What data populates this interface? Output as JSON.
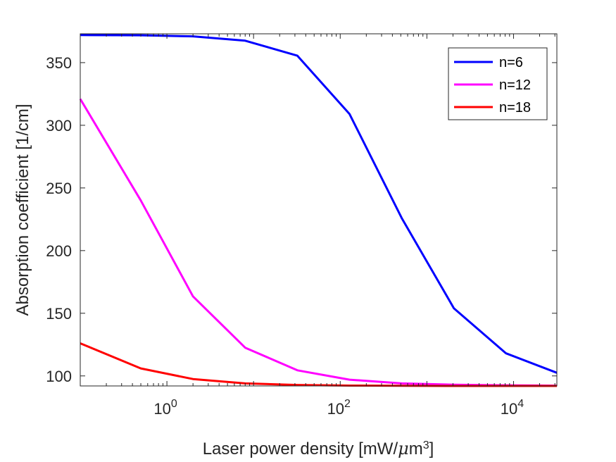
{
  "chart_data": {
    "type": "line",
    "title": "",
    "xlabel": "Laser power density [mW/μm³]",
    "xlabel_parts": {
      "prefix": "Laser power density [mW/",
      "mu": "μ",
      "m": "m",
      "sup": "3",
      "suffix": "]"
    },
    "ylabel": "Absorption coefficient [1/cm]",
    "xscale": "log",
    "xlim": [
      0.1,
      31623
    ],
    "ylim": [
      92,
      373
    ],
    "x_ticks": [
      {
        "value": 1,
        "base": "10",
        "exp": "0"
      },
      {
        "value": 100,
        "base": "10",
        "exp": "2"
      },
      {
        "value": 10000,
        "base": "10",
        "exp": "4"
      }
    ],
    "y_ticks": [
      100,
      150,
      200,
      250,
      300,
      350
    ],
    "grid": false,
    "legend_position": "top-right",
    "series": [
      {
        "name": "n=6",
        "color": "#0000ff",
        "x": [
          0.1,
          0.5,
          2,
          8,
          32,
          128,
          512,
          2048,
          8192,
          31623
        ],
        "y": [
          372,
          371.8,
          371,
          367.5,
          355.5,
          309,
          226,
          154,
          118,
          102.5
        ]
      },
      {
        "name": "n=12",
        "color": "#ff00ff",
        "x": [
          0.1,
          0.5,
          2,
          8,
          32,
          128,
          512,
          2048,
          8192,
          31623
        ],
        "y": [
          321,
          240,
          163.5,
          122.5,
          104.5,
          97,
          94,
          93,
          92.5,
          92.2
        ]
      },
      {
        "name": "n=18",
        "color": "#ff0000",
        "x": [
          0.1,
          0.5,
          2,
          8,
          32,
          128,
          512,
          2048,
          8192,
          31623
        ],
        "y": [
          126,
          106,
          97.5,
          94,
          92.8,
          92.3,
          92.1,
          92,
          92,
          92
        ]
      }
    ]
  }
}
